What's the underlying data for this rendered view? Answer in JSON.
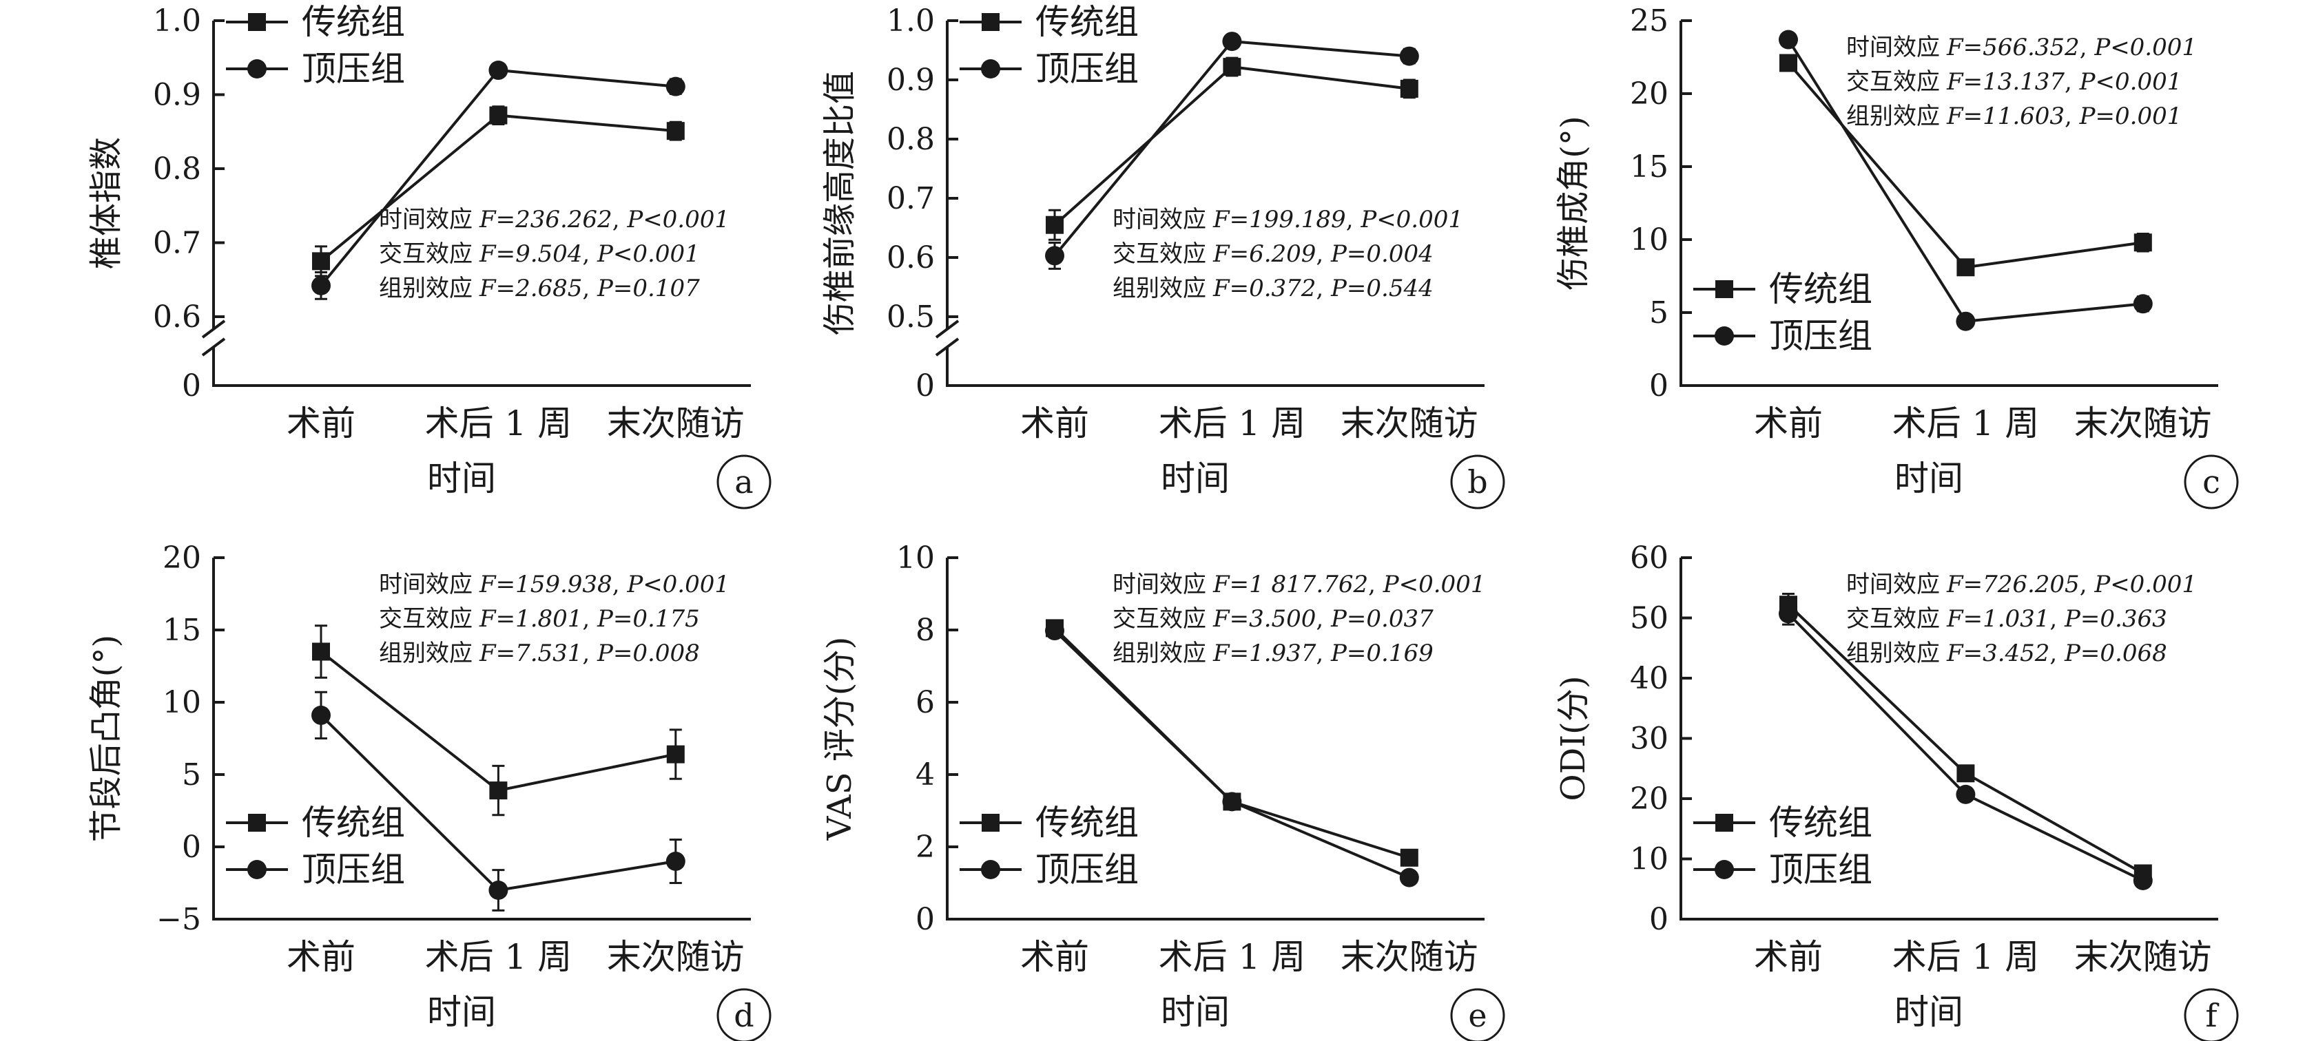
{
  "chart_data": [
    {
      "panel": "a",
      "type": "line",
      "ylabel": "椎体指数",
      "xlabel": "时间",
      "categories": [
        "术前",
        "术后 1 周",
        "末次随访"
      ],
      "ylim": [
        0,
        1.0
      ],
      "axis_break": [
        0.6,
        1.0
      ],
      "yticks": [
        "0",
        "0.6",
        "0.7",
        "0.8",
        "0.9",
        "1.0"
      ],
      "series": [
        {
          "name": "传统组",
          "marker": "square",
          "values": [
            0.675,
            0.872,
            0.851
          ],
          "errors": [
            0.02,
            0.012,
            0.012
          ]
        },
        {
          "name": "顶压组",
          "marker": "circle",
          "values": [
            0.642,
            0.933,
            0.911
          ],
          "errors": [
            0.018,
            0.008,
            0.01
          ]
        }
      ],
      "stats": {
        "time": {
          "label": "时间效应",
          "F": "F=236.262",
          "P": "P<0.001"
        },
        "inter": {
          "label": "交互效应",
          "F": "F=9.504",
          "P": "P<0.001"
        },
        "group": {
          "label": "组别效应",
          "F": "F=2.685",
          "P": "P=0.107"
        }
      },
      "legend_pos": "top-left",
      "stats_pos": "bottom-right"
    },
    {
      "panel": "b",
      "type": "line",
      "ylabel": "伤椎前缘高度比值",
      "xlabel": "时间",
      "categories": [
        "术前",
        "术后 1 周",
        "末次随访"
      ],
      "ylim": [
        0,
        1.0
      ],
      "axis_break": [
        0.5,
        1.0
      ],
      "yticks": [
        "0",
        "0.5",
        "0.6",
        "0.7",
        "0.8",
        "0.9",
        "1.0"
      ],
      "series": [
        {
          "name": "传统组",
          "marker": "square",
          "values": [
            0.655,
            0.922,
            0.885
          ],
          "errors": [
            0.025,
            0.015,
            0.015
          ]
        },
        {
          "name": "顶压组",
          "marker": "circle",
          "values": [
            0.603,
            0.965,
            0.94
          ],
          "errors": [
            0.022,
            0.01,
            0.012
          ]
        }
      ],
      "stats": {
        "time": {
          "label": "时间效应",
          "F": "F=199.189",
          "P": "P<0.001"
        },
        "inter": {
          "label": "交互效应",
          "F": "F=6.209",
          "P": "P=0.004"
        },
        "group": {
          "label": "组别效应",
          "F": "F=0.372",
          "P": "P=0.544"
        }
      },
      "legend_pos": "top-left",
      "stats_pos": "bottom-right"
    },
    {
      "panel": "c",
      "type": "line",
      "ylabel": "伤椎成角(°)",
      "xlabel": "时间",
      "categories": [
        "术前",
        "术后 1 周",
        "末次随访"
      ],
      "ylim": [
        0,
        25
      ],
      "yticks": [
        "0",
        "5",
        "10",
        "15",
        "20",
        "25"
      ],
      "series": [
        {
          "name": "传统组",
          "marker": "square",
          "values": [
            22.1,
            8.1,
            9.8
          ],
          "errors": [
            0.5,
            0.5,
            0.6
          ]
        },
        {
          "name": "顶压组",
          "marker": "circle",
          "values": [
            23.7,
            4.4,
            5.6
          ],
          "errors": [
            0.4,
            0.4,
            0.5
          ]
        }
      ],
      "stats": {
        "time": {
          "label": "时间效应",
          "F": "F=566.352",
          "P": "P<0.001"
        },
        "inter": {
          "label": "交互效应",
          "F": "F=13.137",
          "P": "P<0.001"
        },
        "group": {
          "label": "组别效应",
          "F": "F=11.603",
          "P": "P=0.001"
        }
      },
      "legend_pos": "bottom-left",
      "stats_pos": "top-right"
    },
    {
      "panel": "d",
      "type": "line",
      "ylabel": "节段后凸角(°)",
      "xlabel": "时间",
      "categories": [
        "术前",
        "术后 1 周",
        "末次随访"
      ],
      "ylim": [
        -5,
        20
      ],
      "yticks": [
        "−5",
        "0",
        "5",
        "10",
        "15",
        "20"
      ],
      "series": [
        {
          "name": "传统组",
          "marker": "square",
          "values": [
            13.5,
            3.9,
            6.4
          ],
          "errors": [
            1.8,
            1.7,
            1.7
          ]
        },
        {
          "name": "顶压组",
          "marker": "circle",
          "values": [
            9.1,
            -3.0,
            -1.0
          ],
          "errors": [
            1.6,
            1.4,
            1.5
          ]
        }
      ],
      "stats": {
        "time": {
          "label": "时间效应",
          "F": "F=159.938",
          "P": "P<0.001"
        },
        "inter": {
          "label": "交互效应",
          "F": "F=1.801",
          "P": "P=0.175"
        },
        "group": {
          "label": "组别效应",
          "F": "F=7.531",
          "P": "P=0.008"
        }
      },
      "legend_pos": "bottom-left",
      "stats_pos": "top-right"
    },
    {
      "panel": "e",
      "type": "line",
      "ylabel": "VAS 评分(分)",
      "xlabel": "时间",
      "categories": [
        "术前",
        "术后 1 周",
        "末次随访"
      ],
      "ylim": [
        0,
        10
      ],
      "yticks": [
        "0",
        "2",
        "4",
        "6",
        "8",
        "10"
      ],
      "series": [
        {
          "name": "传统组",
          "marker": "square",
          "values": [
            8.05,
            3.25,
            1.7
          ],
          "errors": [
            0.1,
            0.08,
            0.08
          ]
        },
        {
          "name": "顶压组",
          "marker": "circle",
          "values": [
            7.98,
            3.25,
            1.15
          ],
          "errors": [
            0.1,
            0.08,
            0.08
          ]
        }
      ],
      "stats": {
        "time": {
          "label": "时间效应",
          "F": "F=1 817.762",
          "P": "P<0.001"
        },
        "inter": {
          "label": "交互效应",
          "F": "F=3.500",
          "P": "P=0.037"
        },
        "group": {
          "label": "组别效应",
          "F": "F=1.937",
          "P": "P=0.169"
        }
      },
      "legend_pos": "bottom-left",
      "stats_pos": "top-right"
    },
    {
      "panel": "f",
      "type": "line",
      "ylabel": "ODI(分)",
      "xlabel": "时间",
      "categories": [
        "术前",
        "术后 1 周",
        "末次随访"
      ],
      "ylim": [
        0,
        60
      ],
      "yticks": [
        "0",
        "10",
        "20",
        "30",
        "40",
        "50",
        "60"
      ],
      "series": [
        {
          "name": "传统组",
          "marker": "square",
          "values": [
            52.2,
            24.2,
            7.6
          ],
          "errors": [
            1.8,
            0.8,
            0.6
          ]
        },
        {
          "name": "顶压组",
          "marker": "circle",
          "values": [
            50.7,
            20.7,
            6.4
          ],
          "errors": [
            1.8,
            0.8,
            0.6
          ]
        }
      ],
      "stats": {
        "time": {
          "label": "时间效应",
          "F": "F=726.205",
          "P": "P<0.001"
        },
        "inter": {
          "label": "交互效应",
          "F": "F=1.031",
          "P": "P=0.363"
        },
        "group": {
          "label": "组别效应",
          "F": "F=3.452",
          "P": "P=0.068"
        }
      },
      "legend_pos": "bottom-left",
      "stats_pos": "top-right"
    }
  ]
}
